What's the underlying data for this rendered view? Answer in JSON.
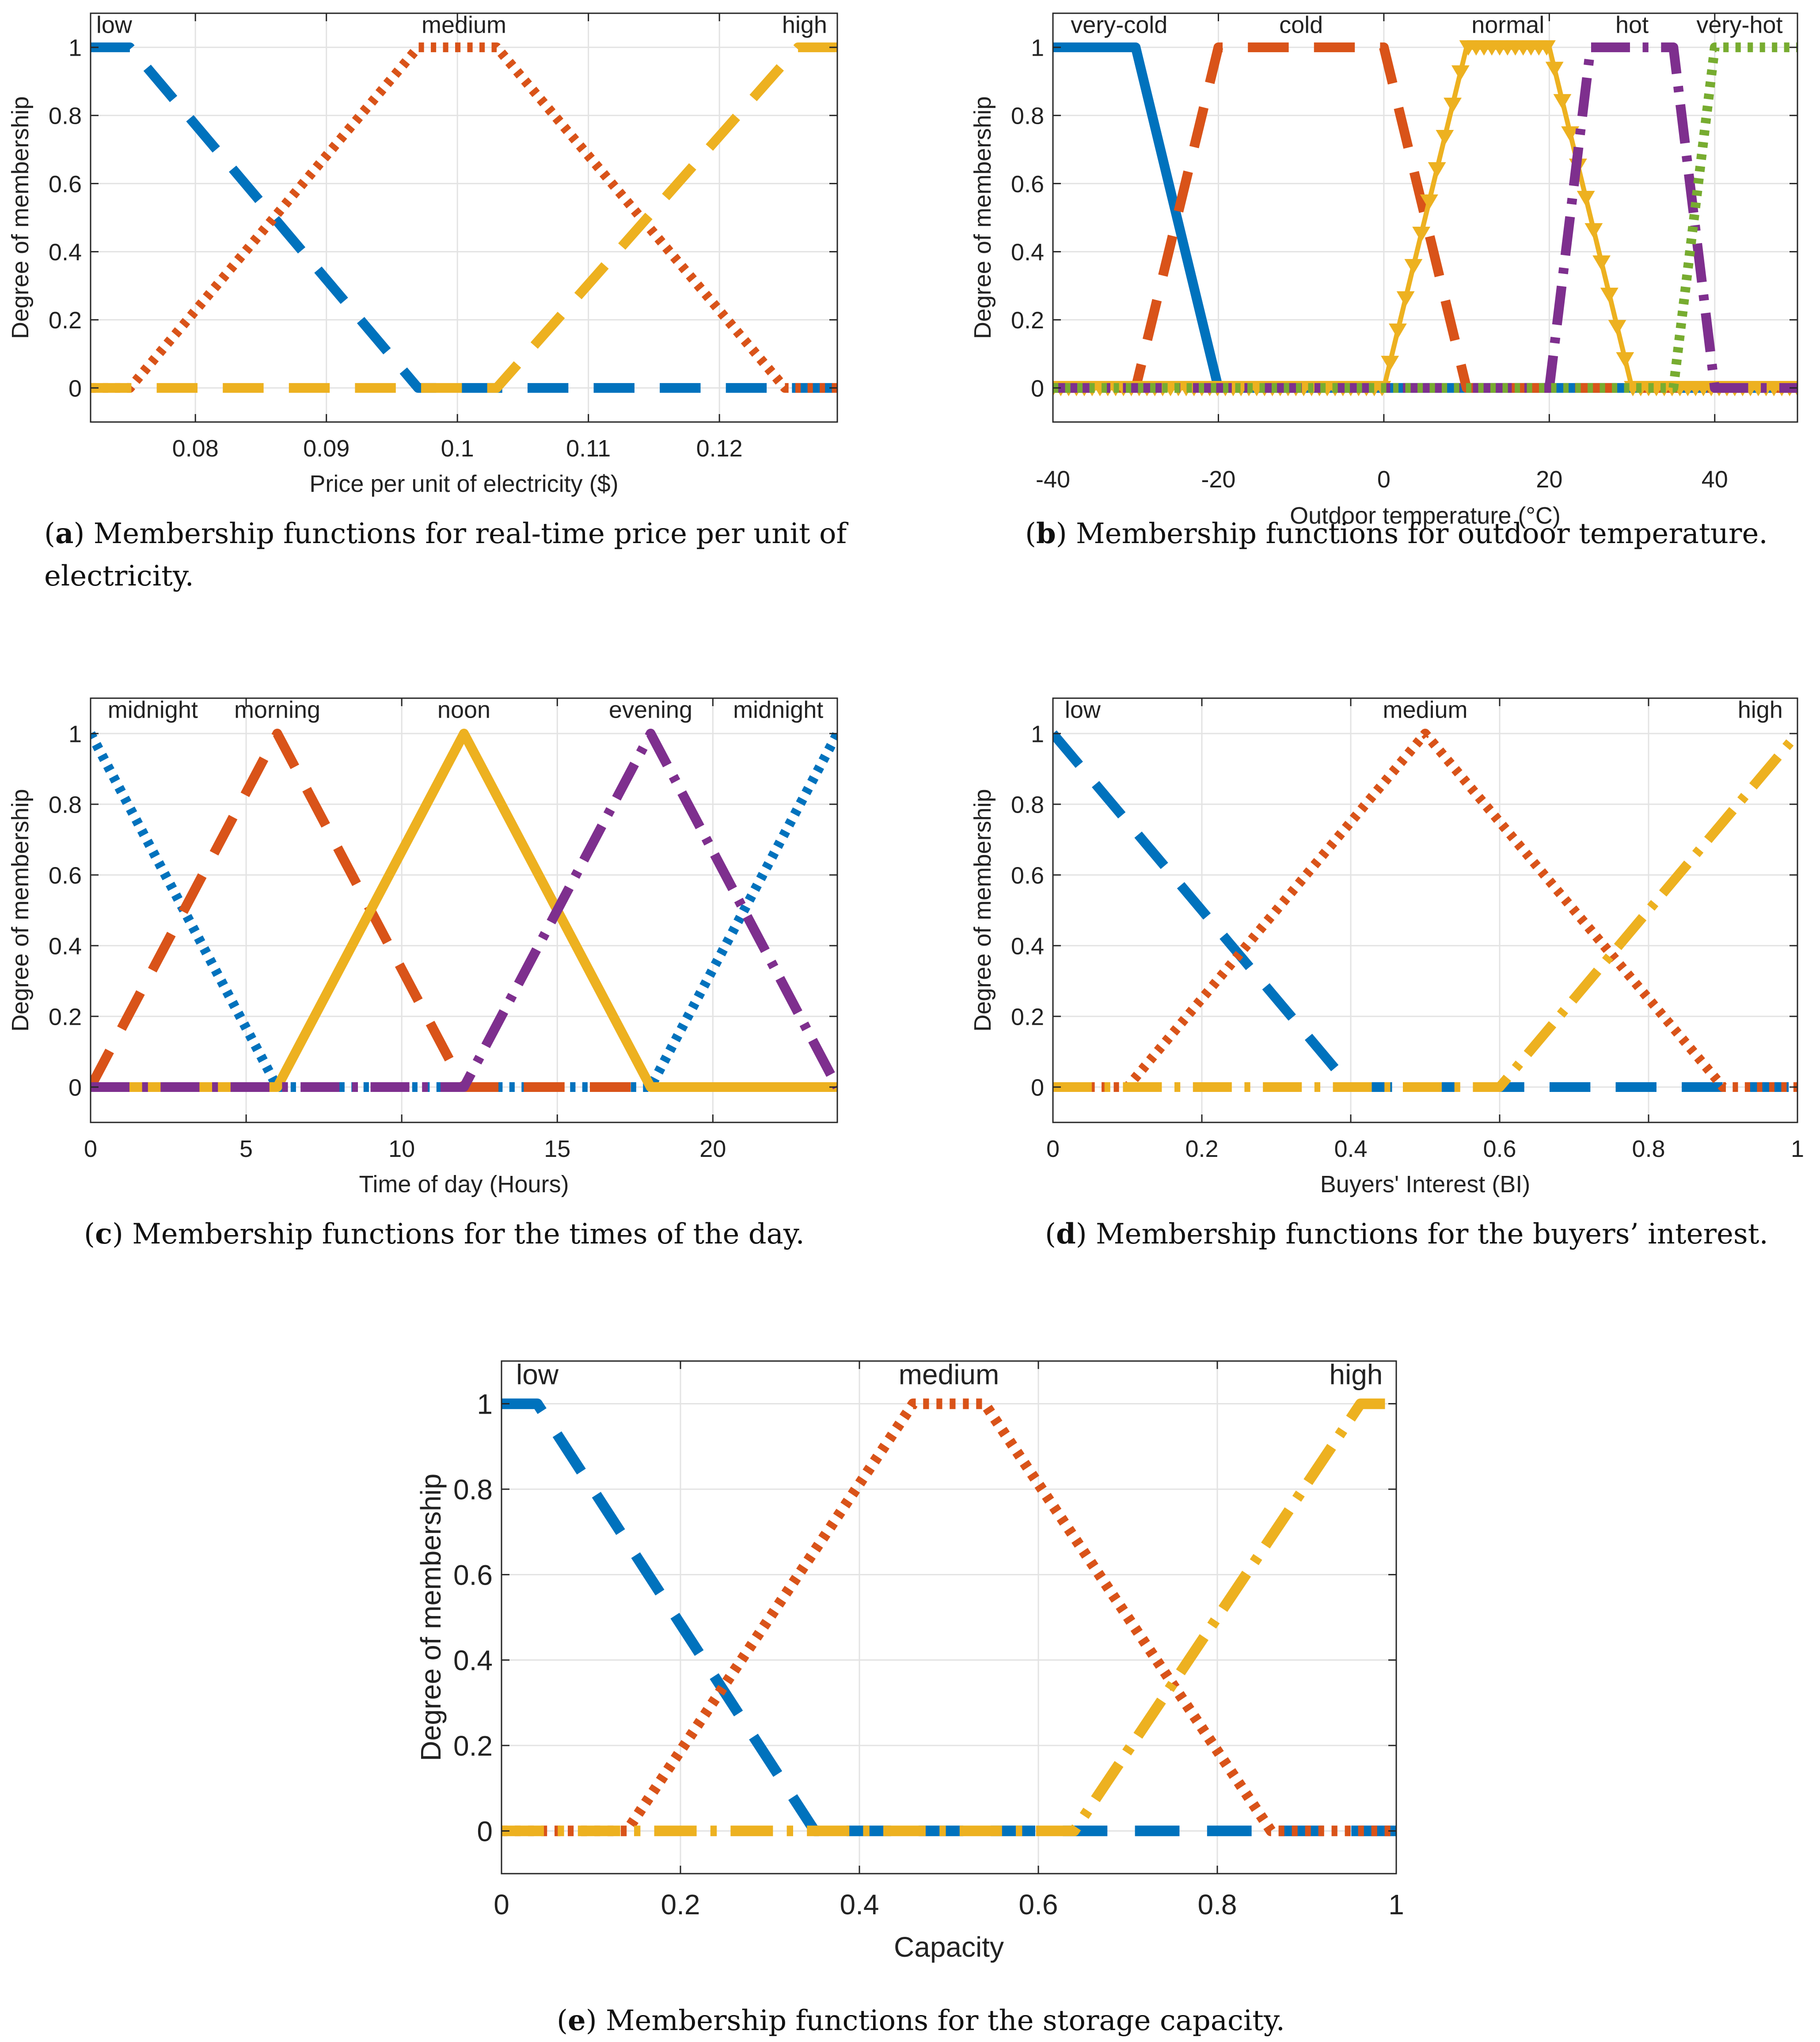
{
  "figure": {
    "captions": {
      "a": {
        "letter": "a",
        "text": "Membership functions for real-time price per unit of electricity."
      },
      "b": {
        "letter": "b",
        "text": "Membership functions for outdoor temperature."
      },
      "c": {
        "letter": "c",
        "text": "Membership functions for the times of the day."
      },
      "d": {
        "letter": "d",
        "text": "Membership functions for the buyers’ interest."
      },
      "e": {
        "letter": "e",
        "text": "Membership functions for the storage capacity."
      }
    }
  },
  "colors": {
    "blue": "#0072BD",
    "orange": "#D95319",
    "yellow": "#EDB120",
    "purple": "#7E2F8E",
    "green": "#77AC30"
  },
  "chart_data": [
    {
      "id": "a",
      "type": "line",
      "title": "",
      "xlabel": "Price per unit of electricity ($)",
      "ylabel": "Degree of membership",
      "xlim": [
        0.072,
        0.129
      ],
      "ylim": [
        -0.1,
        1.1
      ],
      "xticks": [
        0.08,
        0.09,
        0.1,
        0.11,
        0.12
      ],
      "xticklabels": [
        "0.08",
        "0.09",
        "0.1",
        "0.11",
        "0.12"
      ],
      "yticks": [
        0,
        0.2,
        0.4,
        0.6,
        0.8,
        1
      ],
      "yticklabels": [
        "0",
        "0.2",
        "0.4",
        "0.6",
        "0.8",
        "1"
      ],
      "grid": true,
      "labels": [
        {
          "text": "low",
          "x": 0.0738,
          "align": "middle"
        },
        {
          "text": "medium",
          "x": 0.1005,
          "align": "middle"
        },
        {
          "text": "high",
          "x": 0.1265,
          "align": "middle"
        }
      ],
      "series": [
        {
          "name": "low",
          "color": "blue",
          "style": "dash",
          "x": [
            0.072,
            0.075,
            0.097,
            0.129
          ],
          "y": [
            1,
            1,
            0,
            0
          ]
        },
        {
          "name": "medium",
          "color": "orange",
          "style": "dot",
          "x": [
            0.072,
            0.075,
            0.097,
            0.103,
            0.125,
            0.129
          ],
          "y": [
            0,
            0,
            1,
            1,
            0,
            0
          ]
        },
        {
          "name": "high",
          "color": "yellow",
          "style": "dash",
          "x": [
            0.072,
            0.103,
            0.126,
            0.129
          ],
          "y": [
            0,
            0,
            1,
            1
          ]
        }
      ]
    },
    {
      "id": "b",
      "type": "line",
      "title": "",
      "xlabel": "Outdoor temperature (°C)",
      "ylabel": "Degree of membership",
      "xlim": [
        -40,
        50
      ],
      "ylim": [
        -0.1,
        1.1
      ],
      "xticks": [
        -40,
        -20,
        0,
        20,
        40
      ],
      "xticklabels": [
        "-40",
        "-20",
        "0",
        "20",
        "40"
      ],
      "yticks": [
        0,
        0.2,
        0.4,
        0.6,
        0.8,
        1
      ],
      "yticklabels": [
        "0",
        "0.2",
        "0.4",
        "0.6",
        "0.8",
        "1"
      ],
      "grid": true,
      "labels": [
        {
          "text": "very-cold",
          "x": -32,
          "align": "middle"
        },
        {
          "text": "cold",
          "x": -10,
          "align": "middle"
        },
        {
          "text": "normal",
          "x": 15,
          "align": "middle"
        },
        {
          "text": "hot",
          "x": 30,
          "align": "middle"
        },
        {
          "text": "very-hot",
          "x": 43,
          "align": "middle"
        }
      ],
      "series": [
        {
          "name": "very-cold",
          "color": "blue",
          "style": "solid",
          "x": [
            -40,
            -30,
            -20,
            50
          ],
          "y": [
            1,
            1,
            0,
            0
          ]
        },
        {
          "name": "cold",
          "color": "orange",
          "style": "dash",
          "x": [
            -40,
            -30,
            -20,
            0,
            10,
            50
          ],
          "y": [
            0,
            0,
            1,
            1,
            0,
            0
          ]
        },
        {
          "name": "normal",
          "color": "yellow",
          "style": "triangle",
          "x": [
            -40,
            0,
            10,
            20,
            30,
            50
          ],
          "y": [
            0,
            0,
            1,
            1,
            0,
            0
          ]
        },
        {
          "name": "hot",
          "color": "purple",
          "style": "dashdot",
          "x": [
            -40,
            20,
            25,
            35,
            40,
            50
          ],
          "y": [
            0,
            0,
            1,
            1,
            0,
            0
          ]
        },
        {
          "name": "very-hot",
          "color": "green",
          "style": "dot",
          "x": [
            -40,
            35,
            40,
            50
          ],
          "y": [
            0,
            0,
            1,
            1
          ]
        }
      ]
    },
    {
      "id": "c",
      "type": "line",
      "title": "",
      "xlabel": "Time of day (Hours)",
      "ylabel": "Degree of membership",
      "xlim": [
        0,
        24
      ],
      "ylim": [
        -0.1,
        1.1
      ],
      "xticks": [
        0,
        5,
        10,
        15,
        20
      ],
      "xticklabels": [
        "0",
        "5",
        "10",
        "15",
        "20"
      ],
      "yticks": [
        0,
        0.2,
        0.4,
        0.6,
        0.8,
        1
      ],
      "yticklabels": [
        "0",
        "0.2",
        "0.4",
        "0.6",
        "0.8",
        "1"
      ],
      "grid": true,
      "labels": [
        {
          "text": "midnight",
          "x": 2,
          "align": "middle"
        },
        {
          "text": "morning",
          "x": 6,
          "align": "middle"
        },
        {
          "text": "noon",
          "x": 12,
          "align": "middle"
        },
        {
          "text": "evening",
          "x": 18,
          "align": "middle"
        },
        {
          "text": "midnight",
          "x": 22.1,
          "align": "middle"
        }
      ],
      "series": [
        {
          "name": "midnight",
          "color": "blue",
          "style": "dot",
          "x": [
            0,
            6,
            18,
            24
          ],
          "y": [
            1,
            0,
            0,
            1
          ]
        },
        {
          "name": "morning",
          "color": "orange",
          "style": "dash",
          "x": [
            0,
            6,
            12,
            24
          ],
          "y": [
            0,
            1,
            0,
            0
          ]
        },
        {
          "name": "noon",
          "color": "yellow",
          "style": "solid",
          "x": [
            0,
            6,
            12,
            18,
            24
          ],
          "y": [
            0,
            0,
            1,
            0,
            0
          ]
        },
        {
          "name": "evening",
          "color": "purple",
          "style": "dashdot",
          "x": [
            0,
            12,
            18,
            24
          ],
          "y": [
            0,
            0,
            1,
            0
          ]
        }
      ]
    },
    {
      "id": "d",
      "type": "line",
      "title": "",
      "xlabel": "Buyers' Interest (BI)",
      "ylabel": "Degree of membership",
      "xlim": [
        0,
        1
      ],
      "ylim": [
        -0.1,
        1.1
      ],
      "xticks": [
        0,
        0.2,
        0.4,
        0.6,
        0.8,
        1
      ],
      "xticklabels": [
        "0",
        "0.2",
        "0.4",
        "0.6",
        "0.8",
        "1"
      ],
      "yticks": [
        0,
        0.2,
        0.4,
        0.6,
        0.8,
        1
      ],
      "yticklabels": [
        "0",
        "0.2",
        "0.4",
        "0.6",
        "0.8",
        "1"
      ],
      "grid": true,
      "labels": [
        {
          "text": "low",
          "x": 0.04,
          "align": "middle"
        },
        {
          "text": "medium",
          "x": 0.5,
          "align": "middle"
        },
        {
          "text": "high",
          "x": 0.95,
          "align": "middle"
        }
      ],
      "series": [
        {
          "name": "low",
          "color": "blue",
          "style": "dash",
          "x": [
            0,
            0.4,
            1
          ],
          "y": [
            1,
            0,
            0
          ]
        },
        {
          "name": "medium",
          "color": "orange",
          "style": "dot",
          "x": [
            0,
            0.1,
            0.5,
            0.9,
            1
          ],
          "y": [
            0,
            0,
            1,
            0,
            0
          ]
        },
        {
          "name": "high",
          "color": "yellow",
          "style": "dashdot",
          "x": [
            0,
            0.6,
            1
          ],
          "y": [
            0,
            0,
            1
          ]
        }
      ]
    },
    {
      "id": "e",
      "type": "line",
      "title": "",
      "xlabel": "Capacity",
      "ylabel": "Degree of membership",
      "xlim": [
        0,
        1
      ],
      "ylim": [
        -0.1,
        1.1
      ],
      "xticks": [
        0,
        0.2,
        0.4,
        0.6,
        0.8,
        1
      ],
      "xticklabels": [
        "0",
        "0.2",
        "0.4",
        "0.6",
        "0.8",
        "1"
      ],
      "yticks": [
        0,
        0.2,
        0.4,
        0.6,
        0.8,
        1
      ],
      "yticklabels": [
        "0",
        "0.2",
        "0.4",
        "0.6",
        "0.8",
        "1"
      ],
      "grid": true,
      "labels": [
        {
          "text": "low",
          "x": 0.04,
          "align": "middle"
        },
        {
          "text": "medium",
          "x": 0.5,
          "align": "middle"
        },
        {
          "text": "high",
          "x": 0.955,
          "align": "middle"
        }
      ],
      "series": [
        {
          "name": "low",
          "color": "blue",
          "style": "dash",
          "x": [
            0,
            0.04,
            0.35,
            1
          ],
          "y": [
            1,
            1,
            0,
            0
          ]
        },
        {
          "name": "medium",
          "color": "orange",
          "style": "dot",
          "x": [
            0,
            0.14,
            0.46,
            0.54,
            0.86,
            1
          ],
          "y": [
            0,
            0,
            1,
            1,
            0,
            0
          ]
        },
        {
          "name": "high",
          "color": "yellow",
          "style": "dashdot",
          "x": [
            0,
            0.64,
            0.96,
            1
          ],
          "y": [
            0,
            0,
            1,
            1
          ]
        }
      ]
    }
  ]
}
